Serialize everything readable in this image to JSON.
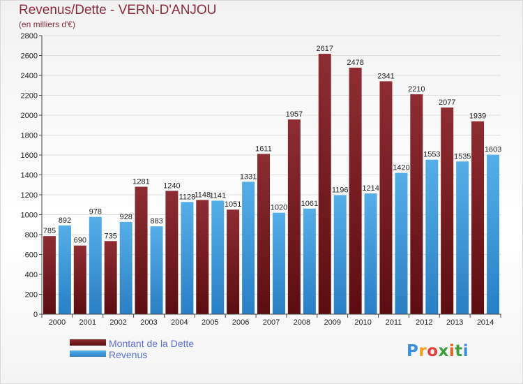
{
  "title": "Revenus/Dette - VERN-D'ANJOU",
  "subtitle": "(en milliers d'€)",
  "logo": {
    "letters": [
      "P",
      "r",
      "o",
      "x",
      "i",
      "t",
      "i"
    ],
    "colors": [
      "#3a8fd8",
      "#f0a020",
      "#e04040",
      "#40a040",
      "#e86020",
      "#40a040",
      "#3a8fd8"
    ]
  },
  "colors": {
    "debt": "#7a1a1e",
    "revenue": "#3d97d8"
  },
  "chart_data": {
    "type": "bar",
    "categories": [
      "2000",
      "2001",
      "2002",
      "2003",
      "2004",
      "2005",
      "2006",
      "2007",
      "2008",
      "2009",
      "2010",
      "2011",
      "2012",
      "2013",
      "2014"
    ],
    "series": [
      {
        "name": "Montant de la Dette",
        "values": [
          785,
          690,
          735,
          1281,
          1240,
          1148,
          1051,
          1611,
          1957,
          2617,
          2478,
          2341,
          2210,
          2077,
          1939
        ]
      },
      {
        "name": "Revenus",
        "values": [
          892,
          978,
          928,
          883,
          1128,
          1141,
          1331,
          1020,
          1061,
          1196,
          1214,
          1420,
          1553,
          1535,
          1603
        ]
      }
    ],
    "ylim": [
      0,
      2800
    ],
    "yticks": [
      0,
      200,
      400,
      600,
      800,
      1000,
      1200,
      1400,
      1600,
      1800,
      2000,
      2200,
      2400,
      2600,
      2800
    ],
    "grid": true,
    "legend_position": "bottom-left"
  }
}
